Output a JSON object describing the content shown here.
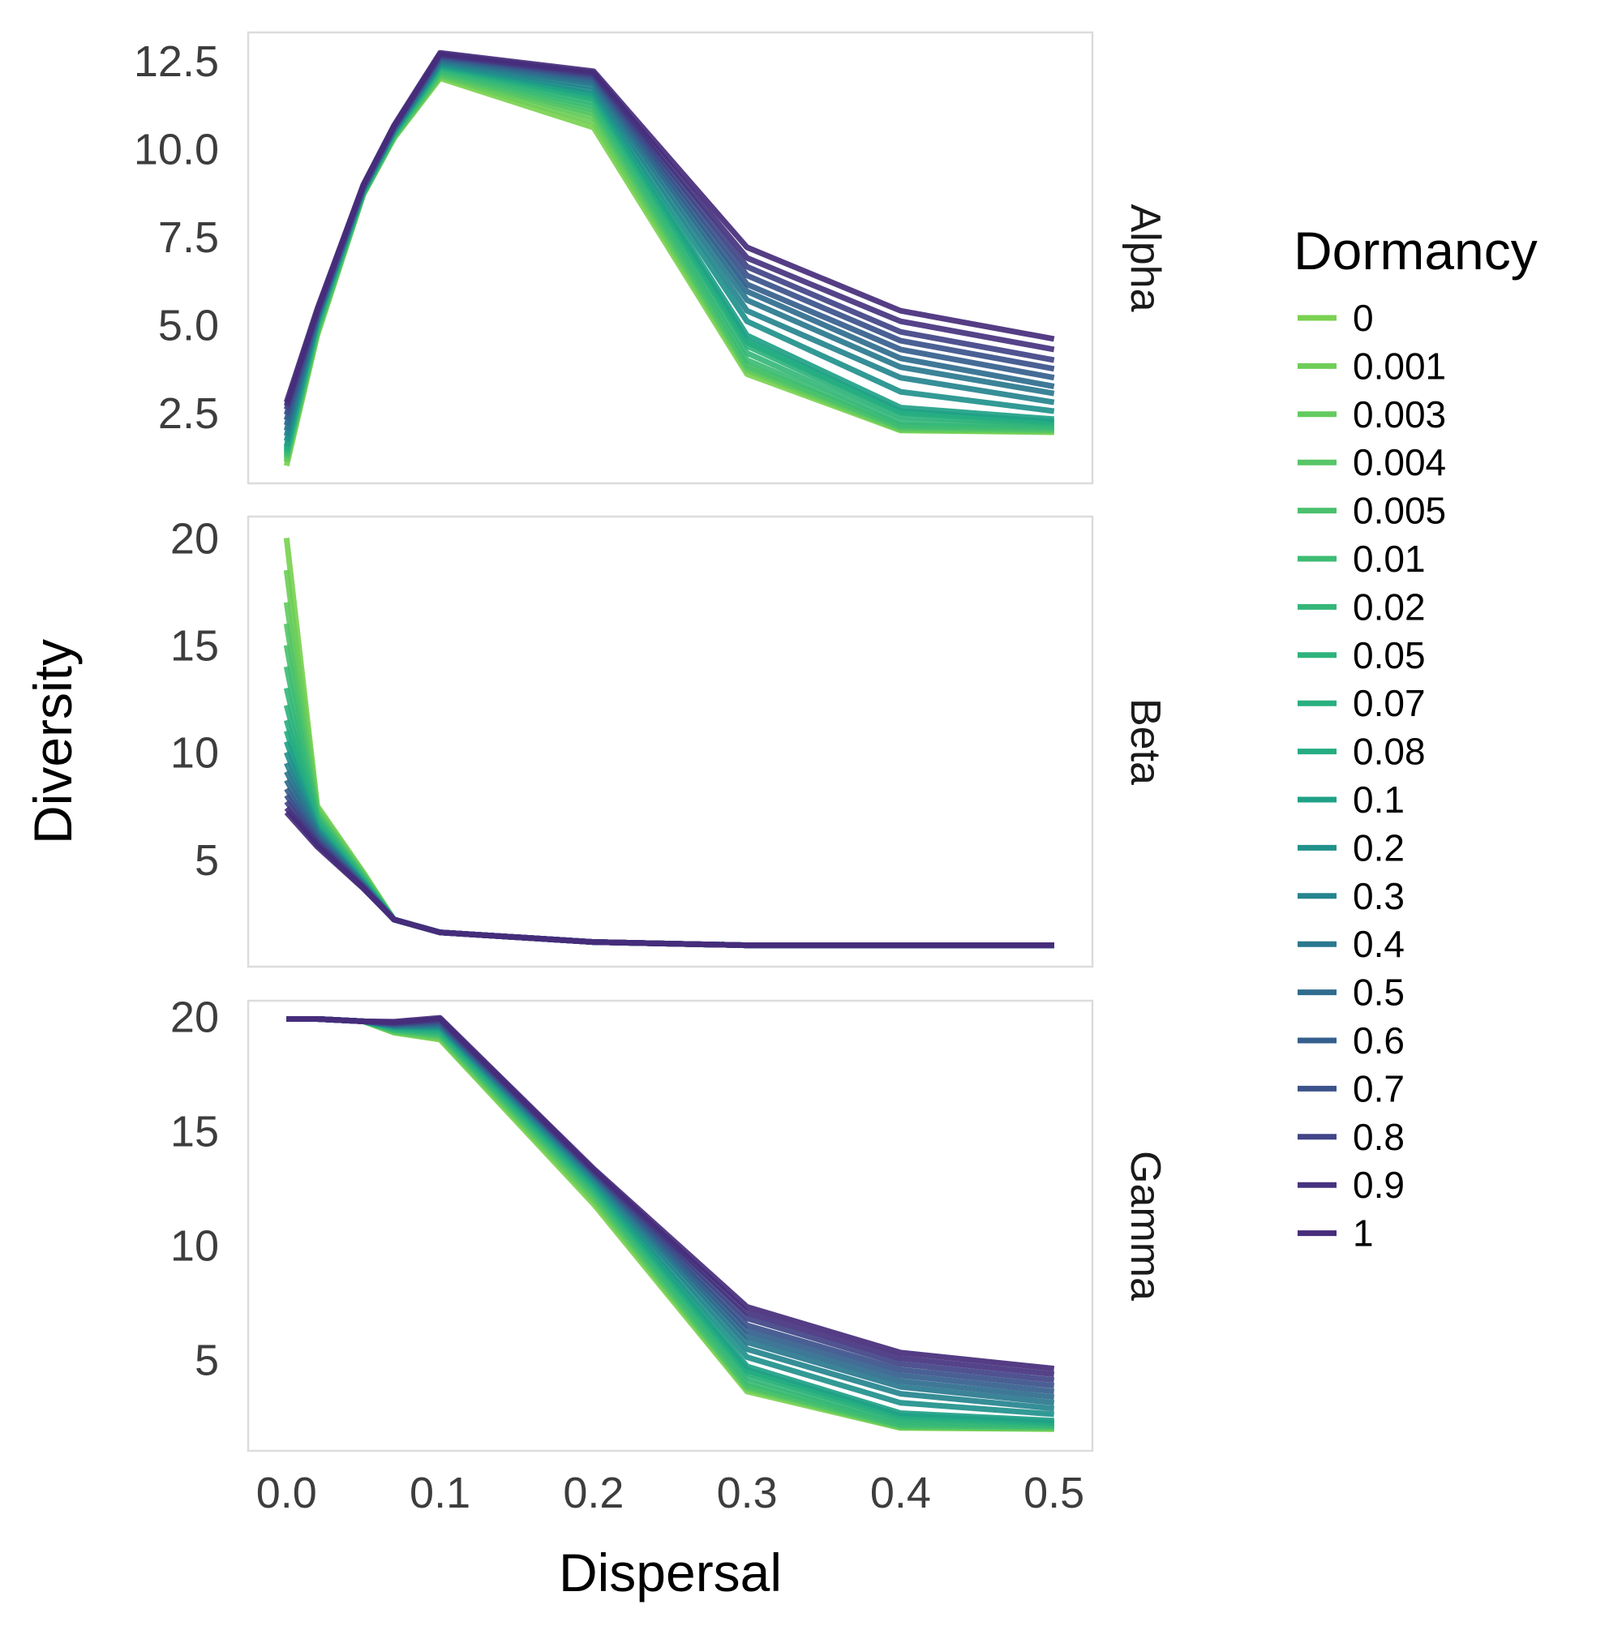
{
  "chart_data": {
    "type": "line",
    "xlabel": "Dispersal",
    "ylabel": "Diversity",
    "x": [
      0.0,
      0.02,
      0.05,
      0.07,
      0.1,
      0.2,
      0.3,
      0.4,
      0.5
    ],
    "xlim": [
      -0.025,
      0.525
    ],
    "xticks": [
      0.0,
      0.1,
      0.2,
      0.3,
      0.4,
      0.5
    ],
    "x_tick_labels": [
      "0.0",
      "0.1",
      "0.2",
      "0.3",
      "0.4",
      "0.5"
    ],
    "grid": false,
    "legend_placement": "right",
    "legend_title": "Dormancy",
    "series_names": [
      "0",
      "0.001",
      "0.003",
      "0.004",
      "0.005",
      "0.01",
      "0.02",
      "0.05",
      "0.07",
      "0.08",
      "0.1",
      "0.2",
      "0.3",
      "0.4",
      "0.5",
      "0.6",
      "0.7",
      "0.8",
      "0.9",
      "1"
    ],
    "series_colors": [
      "#7ad151",
      "#6ece58",
      "#63cb5f",
      "#56c667",
      "#4ac16d",
      "#3dbc74",
      "#35b779",
      "#2eb37c",
      "#29af7f",
      "#25ac82",
      "#1fa187",
      "#21918c",
      "#25848e",
      "#2a788e",
      "#2f6c8e",
      "#355f8d",
      "#3b528b",
      "#414487",
      "#46337f",
      "#472d7b"
    ],
    "panels": [
      {
        "label": "Alpha",
        "ylim": [
          0.5,
          13.3
        ],
        "yticks": [
          2.5,
          5.0,
          7.5,
          10.0,
          12.5
        ],
        "y_tick_labels": [
          "2.5",
          "5.0",
          "7.5",
          "10.0",
          "12.5"
        ],
        "series": [
          {
            "name": "0",
            "values": [
              1.0,
              4.7,
              8.7,
              10.3,
              12.0,
              10.6,
              3.6,
              2.0,
              1.95
            ]
          },
          {
            "name": "0.001",
            "values": [
              1.1,
              4.75,
              8.7,
              10.3,
              12.05,
              10.75,
              3.7,
              2.02,
              1.97
            ]
          },
          {
            "name": "0.003",
            "values": [
              1.15,
              4.8,
              8.7,
              10.32,
              12.08,
              10.9,
              3.75,
              2.05,
              2.0
            ]
          },
          {
            "name": "0.004",
            "values": [
              1.2,
              4.82,
              8.72,
              10.34,
              12.1,
              11.0,
              3.8,
              2.08,
              2.02
            ]
          },
          {
            "name": "0.005",
            "values": [
              1.25,
              4.85,
              8.72,
              10.36,
              12.15,
              11.1,
              3.85,
              2.1,
              2.04
            ]
          },
          {
            "name": "0.01",
            "values": [
              1.3,
              4.9,
              8.75,
              10.38,
              12.2,
              11.2,
              4.0,
              2.15,
              2.08
            ]
          },
          {
            "name": "0.02",
            "values": [
              1.35,
              4.95,
              8.75,
              10.4,
              12.25,
              11.3,
              4.2,
              2.25,
              2.12
            ]
          },
          {
            "name": "0.05",
            "values": [
              1.4,
              5.0,
              8.78,
              10.42,
              12.3,
              11.4,
              4.4,
              2.4,
              2.18
            ]
          },
          {
            "name": "0.07",
            "values": [
              1.45,
              5.02,
              8.78,
              10.44,
              12.32,
              11.45,
              4.5,
              2.5,
              2.22
            ]
          },
          {
            "name": "0.08",
            "values": [
              1.5,
              5.05,
              8.8,
              10.46,
              12.34,
              11.5,
              4.55,
              2.55,
              2.25
            ]
          },
          {
            "name": "0.1",
            "values": [
              1.55,
              5.08,
              8.8,
              10.48,
              12.36,
              11.55,
              4.7,
              2.65,
              2.32
            ]
          },
          {
            "name": "0.2",
            "values": [
              1.7,
              5.12,
              8.82,
              10.5,
              12.4,
              11.65,
              5.1,
              3.1,
              2.55
            ]
          },
          {
            "name": "0.3",
            "values": [
              1.85,
              5.16,
              8.84,
              10.52,
              12.45,
              11.75,
              5.4,
              3.5,
              2.8
            ]
          },
          {
            "name": "0.4",
            "values": [
              2.0,
              5.2,
              8.86,
              10.54,
              12.5,
              11.85,
              5.7,
              3.8,
              3.05
            ]
          },
          {
            "name": "0.5",
            "values": [
              2.15,
              5.24,
              8.88,
              10.56,
              12.55,
              11.92,
              5.95,
              4.05,
              3.25
            ]
          },
          {
            "name": "0.6",
            "values": [
              2.3,
              5.28,
              8.9,
              10.58,
              12.58,
              12.0,
              6.15,
              4.3,
              3.5
            ]
          },
          {
            "name": "0.7",
            "values": [
              2.45,
              5.32,
              8.92,
              10.6,
              12.62,
              12.05,
              6.4,
              4.55,
              3.75
            ]
          },
          {
            "name": "0.8",
            "values": [
              2.6,
              5.36,
              8.94,
              10.62,
              12.65,
              12.1,
              6.65,
              4.8,
              4.0
            ]
          },
          {
            "name": "0.9",
            "values": [
              2.7,
              5.4,
              8.96,
              10.64,
              12.68,
              12.15,
              6.9,
              5.1,
              4.3
            ]
          },
          {
            "name": "1",
            "values": [
              2.8,
              5.45,
              8.98,
              10.66,
              12.72,
              12.2,
              7.2,
              5.4,
              4.6
            ]
          }
        ]
      },
      {
        "label": "Beta",
        "ylim": [
          0.0,
          21.0
        ],
        "yticks": [
          5,
          10,
          15,
          20
        ],
        "y_tick_labels": [
          "5",
          "10",
          "15",
          "20"
        ],
        "series": [
          {
            "name": "0",
            "values": [
              20.0,
              7.5,
              4.4,
              2.2,
              1.6,
              1.15,
              1.0,
              1.0,
              1.0
            ]
          },
          {
            "name": "0.001",
            "values": [
              18.5,
              7.4,
              4.35,
              2.2,
              1.6,
              1.15,
              1.0,
              1.0,
              1.0
            ]
          },
          {
            "name": "0.003",
            "values": [
              17.0,
              7.3,
              4.3,
              2.2,
              1.6,
              1.15,
              1.0,
              1.0,
              1.0
            ]
          },
          {
            "name": "0.004",
            "values": [
              16.0,
              7.2,
              4.25,
              2.2,
              1.6,
              1.15,
              1.0,
              1.0,
              1.0
            ]
          },
          {
            "name": "0.005",
            "values": [
              15.0,
              7.1,
              4.2,
              2.2,
              1.6,
              1.15,
              1.0,
              1.0,
              1.0
            ]
          },
          {
            "name": "0.01",
            "values": [
              14.0,
              7.0,
              4.15,
              2.2,
              1.6,
              1.15,
              1.0,
              1.0,
              1.0
            ]
          },
          {
            "name": "0.02",
            "values": [
              13.0,
              6.9,
              4.1,
              2.2,
              1.6,
              1.15,
              1.0,
              1.0,
              1.0
            ]
          },
          {
            "name": "0.05",
            "values": [
              12.2,
              6.8,
              4.05,
              2.2,
              1.6,
              1.15,
              1.0,
              1.0,
              1.0
            ]
          },
          {
            "name": "0.07",
            "values": [
              11.5,
              6.7,
              4.0,
              2.2,
              1.6,
              1.15,
              1.0,
              1.0,
              1.0
            ]
          },
          {
            "name": "0.08",
            "values": [
              11.0,
              6.6,
              3.98,
              2.2,
              1.6,
              1.15,
              1.0,
              1.0,
              1.0
            ]
          },
          {
            "name": "0.1",
            "values": [
              10.5,
              6.5,
              3.95,
              2.2,
              1.6,
              1.15,
              1.0,
              1.0,
              1.0
            ]
          },
          {
            "name": "0.2",
            "values": [
              10.0,
              6.4,
              3.9,
              2.2,
              1.6,
              1.15,
              1.0,
              1.0,
              1.0
            ]
          },
          {
            "name": "0.3",
            "values": [
              9.5,
              6.3,
              3.85,
              2.2,
              1.6,
              1.15,
              1.0,
              1.0,
              1.0
            ]
          },
          {
            "name": "0.4",
            "values": [
              9.1,
              6.2,
              3.82,
              2.2,
              1.6,
              1.15,
              1.0,
              1.0,
              1.0
            ]
          },
          {
            "name": "0.5",
            "values": [
              8.7,
              6.1,
              3.8,
              2.2,
              1.6,
              1.15,
              1.0,
              1.0,
              1.0
            ]
          },
          {
            "name": "0.6",
            "values": [
              8.3,
              6.0,
              3.75,
              2.2,
              1.6,
              1.15,
              1.0,
              1.0,
              1.0
            ]
          },
          {
            "name": "0.7",
            "values": [
              8.0,
              5.9,
              3.72,
              2.2,
              1.6,
              1.15,
              1.0,
              1.0,
              1.0
            ]
          },
          {
            "name": "0.8",
            "values": [
              7.7,
              5.8,
              3.7,
              2.2,
              1.6,
              1.15,
              1.0,
              1.0,
              1.0
            ]
          },
          {
            "name": "0.9",
            "values": [
              7.4,
              5.7,
              3.68,
              2.2,
              1.6,
              1.15,
              1.0,
              1.0,
              1.0
            ]
          },
          {
            "name": "1",
            "values": [
              7.2,
              5.6,
              3.65,
              2.2,
              1.6,
              1.15,
              1.0,
              1.0,
              1.0
            ]
          }
        ]
      },
      {
        "label": "Gamma",
        "ylim": [
          1.0,
          20.7
        ],
        "yticks": [
          5,
          10,
          15,
          20
        ],
        "y_tick_labels": [
          "5",
          "10",
          "15",
          "20"
        ],
        "series": [
          {
            "name": "0",
            "values": [
              19.9,
              19.9,
              19.8,
              19.3,
              19.0,
              11.8,
              3.6,
              2.0,
              1.95
            ]
          },
          {
            "name": "0.001",
            "values": [
              19.9,
              19.9,
              19.8,
              19.32,
              19.05,
              11.95,
              3.7,
              2.02,
              1.97
            ]
          },
          {
            "name": "0.003",
            "values": [
              19.9,
              19.9,
              19.8,
              19.35,
              19.1,
              12.05,
              3.75,
              2.05,
              2.0
            ]
          },
          {
            "name": "0.004",
            "values": [
              19.9,
              19.9,
              19.8,
              19.38,
              19.15,
              12.15,
              3.8,
              2.08,
              2.02
            ]
          },
          {
            "name": "0.005",
            "values": [
              19.9,
              19.9,
              19.8,
              19.4,
              19.2,
              12.25,
              3.85,
              2.1,
              2.05
            ]
          },
          {
            "name": "0.01",
            "values": [
              19.9,
              19.9,
              19.8,
              19.42,
              19.25,
              12.35,
              4.0,
              2.15,
              2.08
            ]
          },
          {
            "name": "0.02",
            "values": [
              19.9,
              19.9,
              19.8,
              19.45,
              19.3,
              12.45,
              4.2,
              2.25,
              2.12
            ]
          },
          {
            "name": "0.05",
            "values": [
              19.9,
              19.9,
              19.8,
              19.48,
              19.35,
              12.55,
              4.4,
              2.4,
              2.18
            ]
          },
          {
            "name": "0.07",
            "values": [
              19.9,
              19.9,
              19.8,
              19.5,
              19.4,
              12.6,
              4.5,
              2.5,
              2.22
            ]
          },
          {
            "name": "0.08",
            "values": [
              19.9,
              19.9,
              19.8,
              19.52,
              19.45,
              12.65,
              4.55,
              2.55,
              2.25
            ]
          },
          {
            "name": "0.1",
            "values": [
              19.9,
              19.9,
              19.8,
              19.55,
              19.5,
              12.75,
              4.7,
              2.65,
              2.32
            ]
          },
          {
            "name": "0.2",
            "values": [
              19.9,
              19.9,
              19.8,
              19.58,
              19.55,
              12.85,
              5.1,
              3.1,
              2.6
            ]
          },
          {
            "name": "0.3",
            "values": [
              19.9,
              19.9,
              19.8,
              19.6,
              19.6,
              12.95,
              5.45,
              3.5,
              2.85
            ]
          },
          {
            "name": "0.4",
            "values": [
              19.9,
              19.9,
              19.8,
              19.62,
              19.65,
              13.05,
              5.75,
              3.8,
              3.1
            ]
          },
          {
            "name": "0.5",
            "values": [
              19.9,
              19.9,
              19.8,
              19.65,
              19.7,
              13.1,
              6.0,
              4.05,
              3.35
            ]
          },
          {
            "name": "0.6",
            "values": [
              19.9,
              19.9,
              19.8,
              19.68,
              19.75,
              13.15,
              6.25,
              4.3,
              3.6
            ]
          },
          {
            "name": "0.7",
            "values": [
              19.9,
              19.9,
              19.8,
              19.7,
              19.8,
              13.2,
              6.5,
              4.55,
              3.85
            ]
          },
          {
            "name": "0.8",
            "values": [
              19.9,
              19.9,
              19.8,
              19.72,
              19.85,
              13.25,
              6.8,
              4.8,
              4.1
            ]
          },
          {
            "name": "0.9",
            "values": [
              19.9,
              19.9,
              19.8,
              19.75,
              19.9,
              13.3,
              7.05,
              5.05,
              4.35
            ]
          },
          {
            "name": "1",
            "values": [
              19.9,
              19.9,
              19.8,
              19.78,
              19.95,
              13.35,
              7.3,
              5.3,
              4.6
            ]
          }
        ]
      }
    ]
  }
}
